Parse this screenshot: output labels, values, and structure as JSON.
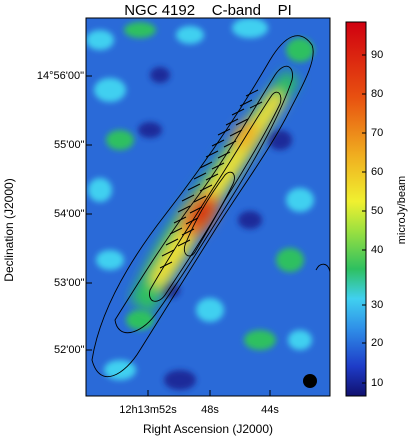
{
  "figure": {
    "title": "NGC 4192    C-band    PI",
    "xlabel": "Right Ascension (J2000)",
    "ylabel": "Declination (J2000)",
    "colorbar_label": "microJy/beam",
    "ra_ticks": [
      "12h13m52s",
      "48s",
      "44s"
    ],
    "dec_ticks": [
      "14°56'00\"",
      "55'00\"",
      "54'00\"",
      "53'00\"",
      "52'00\""
    ],
    "colorbar_ticks": [
      "90",
      "80",
      "70",
      "60",
      "50",
      "40",
      "30",
      "20",
      "10"
    ]
  },
  "colors": {
    "low": "#1a2a9a",
    "mid": "#3fc0e8",
    "green": "#2ec060",
    "yellow": "#f0e030",
    "high": "#d02010"
  }
}
